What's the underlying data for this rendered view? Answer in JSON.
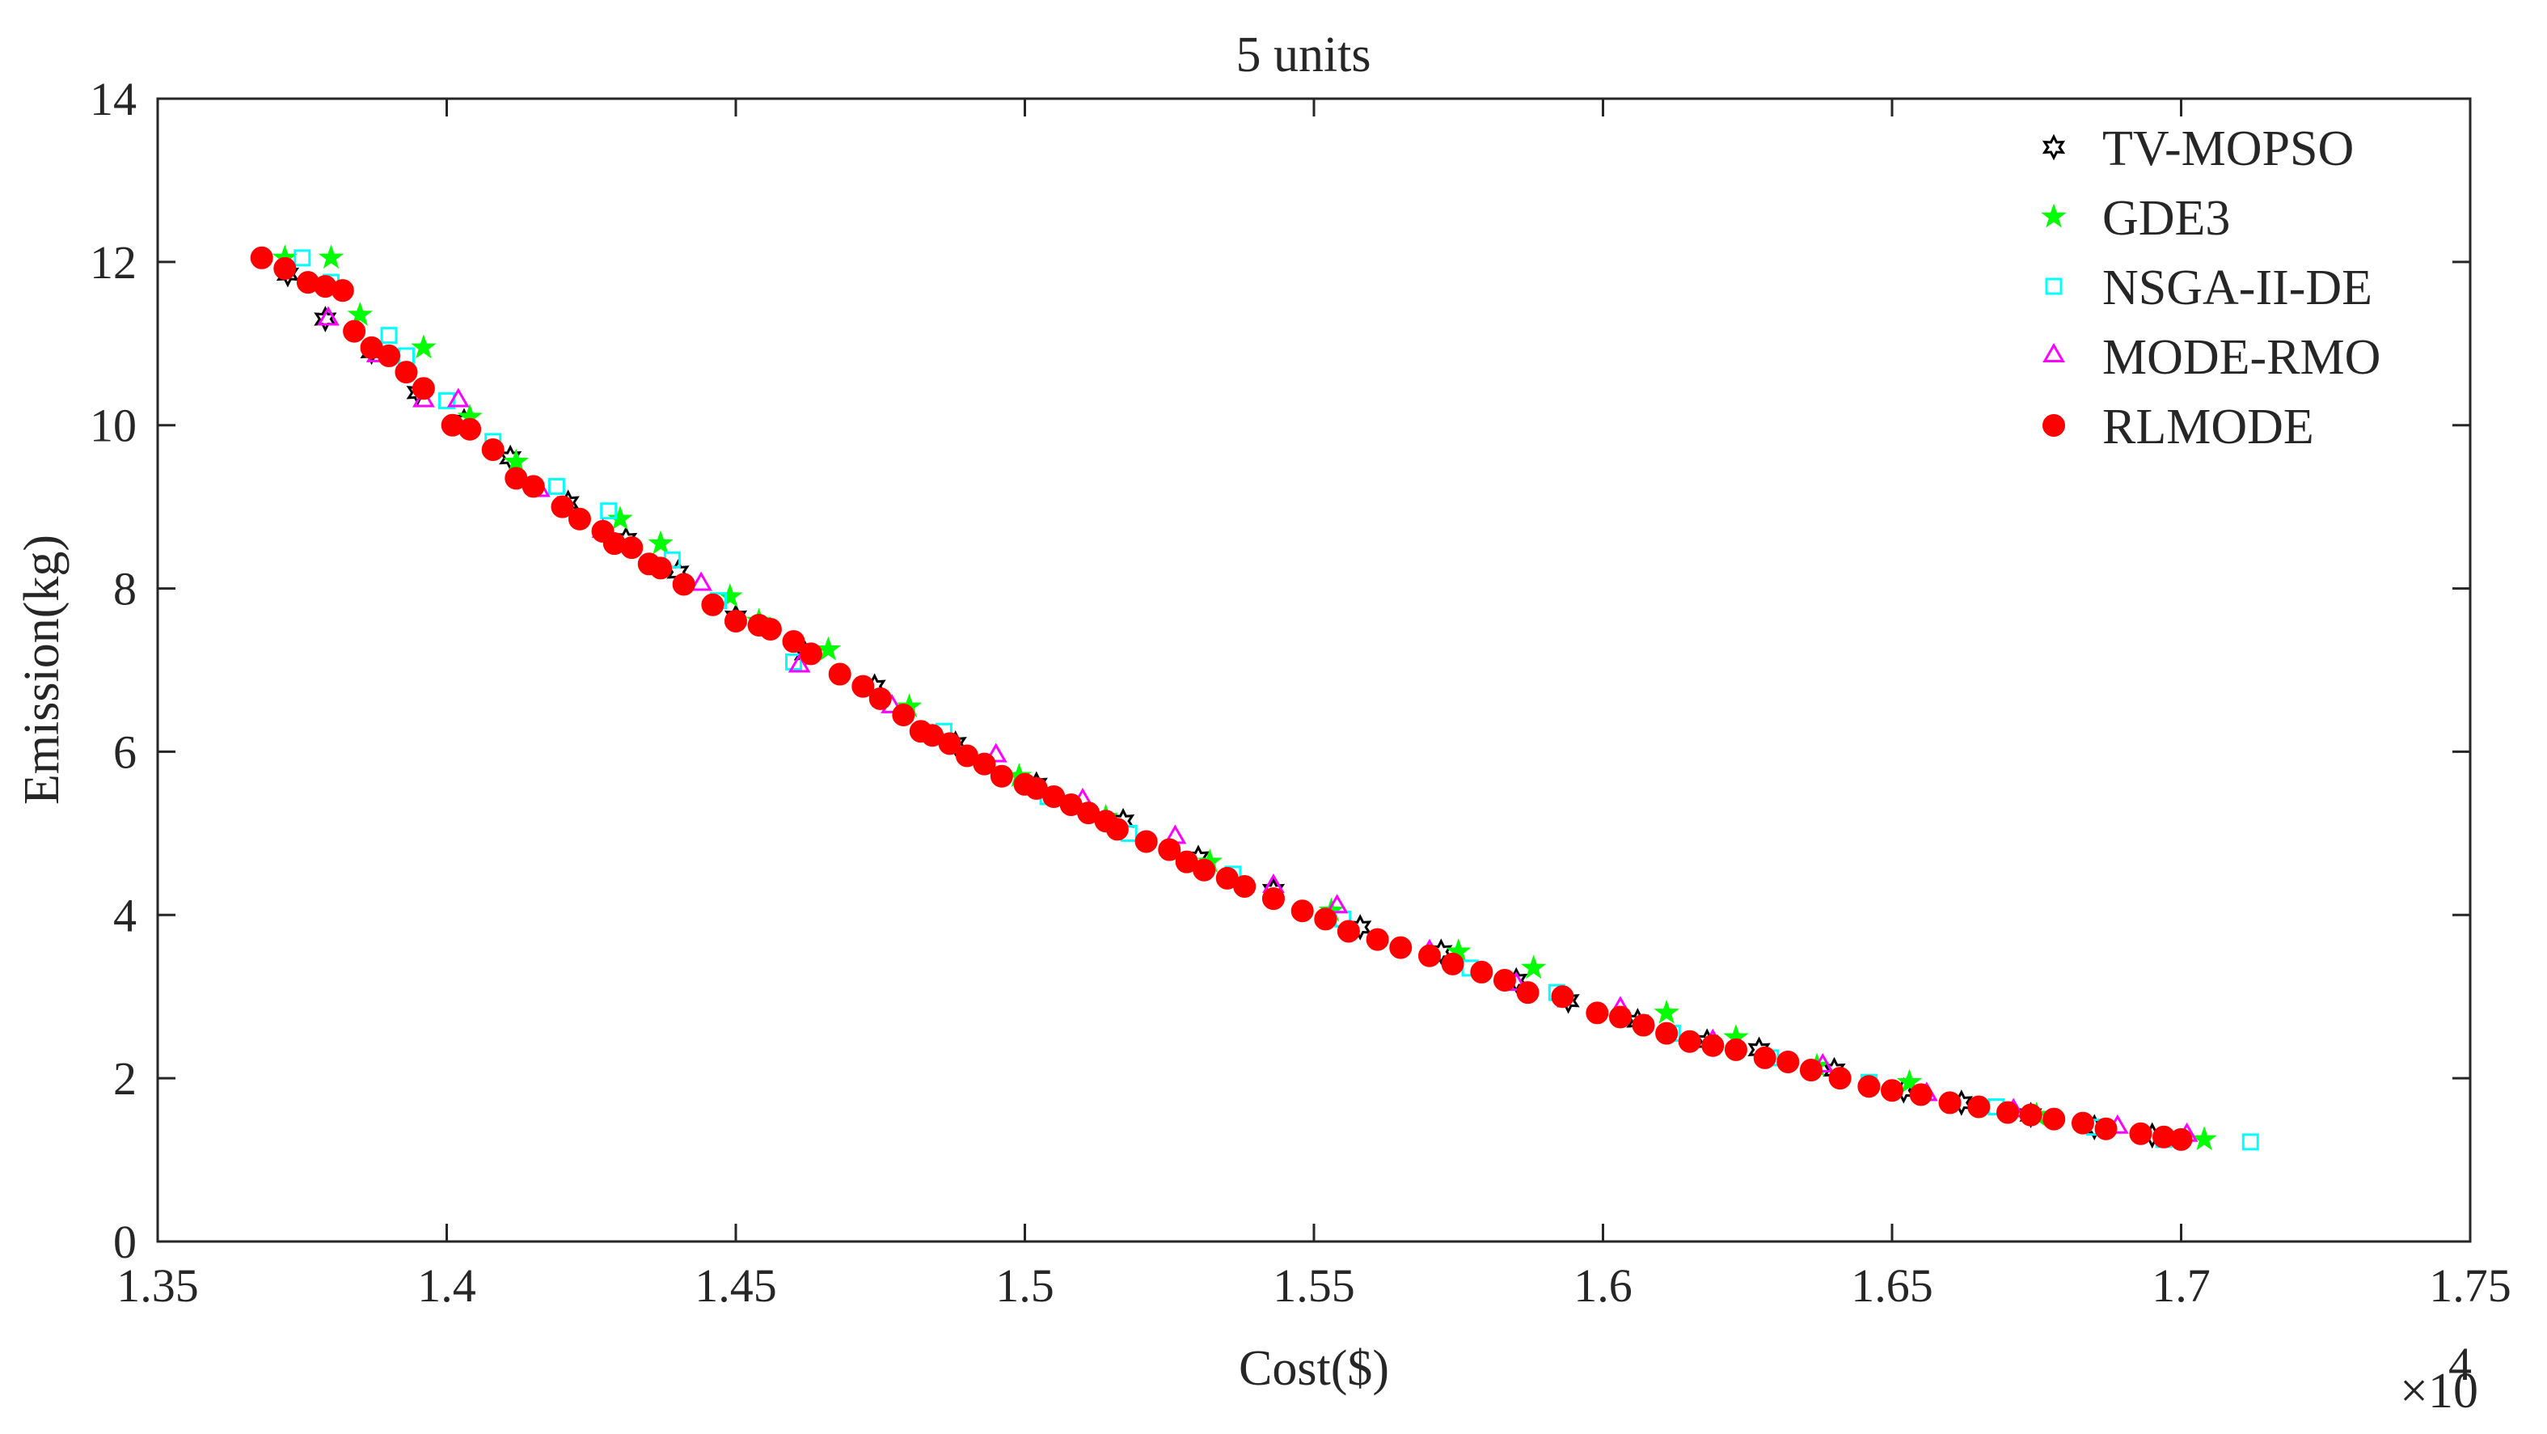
{
  "chart_data": {
    "type": "scatter",
    "title": "5 units",
    "xlabel": "Cost($)",
    "ylabel": "Emission(kg)",
    "x_multiplier_label": "×10",
    "x_multiplier_exponent": "4",
    "xlim": [
      1.35,
      1.75
    ],
    "ylim": [
      0,
      14
    ],
    "xticks": [
      "1.35",
      "1.4",
      "1.45",
      "1.5",
      "1.55",
      "1.6",
      "1.65",
      "1.7",
      "1.75"
    ],
    "yticks": [
      "0",
      "2",
      "4",
      "6",
      "8",
      "10",
      "12",
      "14"
    ],
    "grid": false,
    "legend_position": "top-right",
    "series": [
      {
        "name": "TV-MOPSO",
        "marker": "hexagram",
        "color": "#000000",
        "points": [
          [
            1.3725,
            11.85
          ],
          [
            1.379,
            11.3
          ],
          [
            1.387,
            10.9
          ],
          [
            1.395,
            10.4
          ],
          [
            1.403,
            10.05
          ],
          [
            1.411,
            9.6
          ],
          [
            1.421,
            9.05
          ],
          [
            1.431,
            8.6
          ],
          [
            1.44,
            8.2
          ],
          [
            1.45,
            7.65
          ],
          [
            1.462,
            7.2
          ],
          [
            1.474,
            6.8
          ],
          [
            1.488,
            6.1
          ],
          [
            1.502,
            5.6
          ],
          [
            1.517,
            5.15
          ],
          [
            1.53,
            4.7
          ],
          [
            1.543,
            4.3
          ],
          [
            1.558,
            3.85
          ],
          [
            1.572,
            3.55
          ],
          [
            1.585,
            3.2
          ],
          [
            1.594,
            2.95
          ],
          [
            1.606,
            2.7
          ],
          [
            1.618,
            2.45
          ],
          [
            1.627,
            2.35
          ],
          [
            1.64,
            2.1
          ],
          [
            1.652,
            1.85
          ],
          [
            1.662,
            1.7
          ],
          [
            1.674,
            1.55
          ],
          [
            1.685,
            1.4
          ],
          [
            1.695,
            1.3
          ]
        ]
      },
      {
        "name": "GDE3",
        "marker": "pentagram",
        "color": "#00ff00",
        "points": [
          [
            1.372,
            12.05
          ],
          [
            1.38,
            12.05
          ],
          [
            1.385,
            11.35
          ],
          [
            1.396,
            10.95
          ],
          [
            1.404,
            10.1
          ],
          [
            1.412,
            9.55
          ],
          [
            1.43,
            8.85
          ],
          [
            1.437,
            8.55
          ],
          [
            1.449,
            7.9
          ],
          [
            1.454,
            7.6
          ],
          [
            1.466,
            7.25
          ],
          [
            1.48,
            6.55
          ],
          [
            1.499,
            5.7
          ],
          [
            1.514,
            5.2
          ],
          [
            1.532,
            4.65
          ],
          [
            1.553,
            4.05
          ],
          [
            1.575,
            3.55
          ],
          [
            1.588,
            3.35
          ],
          [
            1.611,
            2.8
          ],
          [
            1.623,
            2.5
          ],
          [
            1.637,
            2.15
          ],
          [
            1.653,
            1.95
          ],
          [
            1.675,
            1.55
          ],
          [
            1.704,
            1.25
          ]
        ]
      },
      {
        "name": "NSGA-II-DE",
        "marker": "square",
        "color": "#00ffff",
        "points": [
          [
            1.375,
            12.05
          ],
          [
            1.38,
            11.75
          ],
          [
            1.39,
            11.1
          ],
          [
            1.393,
            10.85
          ],
          [
            1.4,
            10.3
          ],
          [
            1.408,
            9.8
          ],
          [
            1.419,
            9.25
          ],
          [
            1.428,
            8.95
          ],
          [
            1.439,
            8.35
          ],
          [
            1.447,
            7.85
          ],
          [
            1.46,
            7.1
          ],
          [
            1.475,
            6.65
          ],
          [
            1.486,
            6.25
          ],
          [
            1.504,
            5.45
          ],
          [
            1.518,
            5.0
          ],
          [
            1.536,
            4.5
          ],
          [
            1.555,
            3.95
          ],
          [
            1.577,
            3.35
          ],
          [
            1.592,
            3.05
          ],
          [
            1.612,
            2.55
          ],
          [
            1.629,
            2.25
          ],
          [
            1.646,
            1.95
          ],
          [
            1.668,
            1.65
          ],
          [
            1.685,
            1.4
          ],
          [
            1.697,
            1.25
          ],
          [
            1.712,
            1.22
          ]
        ]
      },
      {
        "name": "MODE-RMO",
        "marker": "triangle",
        "color": "#ff00ff",
        "points": [
          [
            1.3795,
            11.3
          ],
          [
            1.388,
            10.85
          ],
          [
            1.396,
            10.3
          ],
          [
            1.402,
            10.3
          ],
          [
            1.416,
            9.2
          ],
          [
            1.427,
            8.7
          ],
          [
            1.444,
            8.05
          ],
          [
            1.461,
            7.05
          ],
          [
            1.477,
            6.55
          ],
          [
            1.495,
            5.95
          ],
          [
            1.51,
            5.4
          ],
          [
            1.526,
            4.95
          ],
          [
            1.543,
            4.35
          ],
          [
            1.554,
            4.1
          ],
          [
            1.57,
            3.55
          ],
          [
            1.585,
            3.15
          ],
          [
            1.603,
            2.85
          ],
          [
            1.619,
            2.45
          ],
          [
            1.638,
            2.15
          ],
          [
            1.656,
            1.8
          ],
          [
            1.671,
            1.6
          ],
          [
            1.689,
            1.4
          ],
          [
            1.701,
            1.3
          ]
        ]
      },
      {
        "name": "RLMODE",
        "marker": "circle",
        "color": "#ff0000",
        "points": [
          [
            1.368,
            12.05
          ],
          [
            1.372,
            11.92
          ],
          [
            1.376,
            11.75
          ],
          [
            1.379,
            11.7
          ],
          [
            1.382,
            11.65
          ],
          [
            1.384,
            11.15
          ],
          [
            1.387,
            10.95
          ],
          [
            1.39,
            10.85
          ],
          [
            1.393,
            10.65
          ],
          [
            1.396,
            10.45
          ],
          [
            1.401,
            10.0
          ],
          [
            1.404,
            9.95
          ],
          [
            1.408,
            9.7
          ],
          [
            1.412,
            9.35
          ],
          [
            1.415,
            9.25
          ],
          [
            1.42,
            9.0
          ],
          [
            1.423,
            8.85
          ],
          [
            1.427,
            8.7
          ],
          [
            1.429,
            8.55
          ],
          [
            1.432,
            8.5
          ],
          [
            1.435,
            8.3
          ],
          [
            1.437,
            8.25
          ],
          [
            1.441,
            8.05
          ],
          [
            1.446,
            7.8
          ],
          [
            1.45,
            7.6
          ],
          [
            1.454,
            7.55
          ],
          [
            1.456,
            7.5
          ],
          [
            1.46,
            7.35
          ],
          [
            1.463,
            7.2
          ],
          [
            1.468,
            6.95
          ],
          [
            1.472,
            6.8
          ],
          [
            1.475,
            6.65
          ],
          [
            1.479,
            6.45
          ],
          [
            1.482,
            6.25
          ],
          [
            1.484,
            6.2
          ],
          [
            1.487,
            6.1
          ],
          [
            1.49,
            5.95
          ],
          [
            1.493,
            5.85
          ],
          [
            1.496,
            5.7
          ],
          [
            1.5,
            5.6
          ],
          [
            1.502,
            5.55
          ],
          [
            1.505,
            5.45
          ],
          [
            1.508,
            5.35
          ],
          [
            1.511,
            5.25
          ],
          [
            1.514,
            5.15
          ],
          [
            1.516,
            5.05
          ],
          [
            1.521,
            4.9
          ],
          [
            1.525,
            4.8
          ],
          [
            1.528,
            4.65
          ],
          [
            1.531,
            4.55
          ],
          [
            1.535,
            4.45
          ],
          [
            1.538,
            4.35
          ],
          [
            1.543,
            4.2
          ],
          [
            1.548,
            4.05
          ],
          [
            1.552,
            3.95
          ],
          [
            1.556,
            3.8
          ],
          [
            1.561,
            3.7
          ],
          [
            1.565,
            3.6
          ],
          [
            1.57,
            3.5
          ],
          [
            1.574,
            3.4
          ],
          [
            1.579,
            3.3
          ],
          [
            1.583,
            3.2
          ],
          [
            1.587,
            3.05
          ],
          [
            1.593,
            3.0
          ],
          [
            1.599,
            2.8
          ],
          [
            1.603,
            2.75
          ],
          [
            1.607,
            2.65
          ],
          [
            1.611,
            2.55
          ],
          [
            1.615,
            2.45
          ],
          [
            1.619,
            2.4
          ],
          [
            1.623,
            2.35
          ],
          [
            1.628,
            2.25
          ],
          [
            1.632,
            2.2
          ],
          [
            1.636,
            2.1
          ],
          [
            1.641,
            2.0
          ],
          [
            1.646,
            1.9
          ],
          [
            1.65,
            1.85
          ],
          [
            1.655,
            1.8
          ],
          [
            1.66,
            1.7
          ],
          [
            1.665,
            1.65
          ],
          [
            1.67,
            1.58
          ],
          [
            1.674,
            1.55
          ],
          [
            1.678,
            1.5
          ],
          [
            1.683,
            1.45
          ],
          [
            1.687,
            1.38
          ],
          [
            1.693,
            1.32
          ],
          [
            1.697,
            1.28
          ],
          [
            1.7,
            1.25
          ]
        ]
      }
    ]
  }
}
